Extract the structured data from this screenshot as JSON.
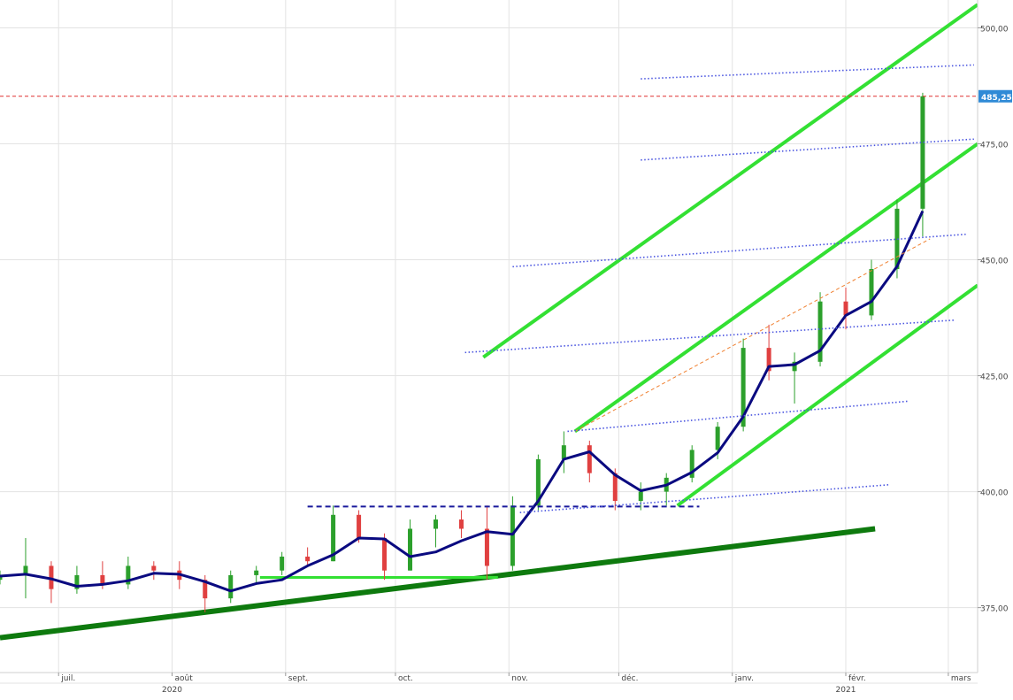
{
  "chart_data": {
    "type": "candlestick",
    "title": "",
    "xlabel": "",
    "ylabel": "",
    "ylim": [
      361,
      506
    ],
    "grid": true,
    "x_range": [
      "2020-06-15",
      "2021-03-09"
    ],
    "y_ticks": [
      "500,00",
      "475,00",
      "450,00",
      "425,00",
      "400,00",
      "375,00"
    ],
    "y_tick_values": [
      500,
      475,
      450,
      425,
      400,
      375
    ],
    "months": [
      {
        "date": "2020-07-01",
        "label": "juil."
      },
      {
        "date": "2020-08-01",
        "label": "août"
      },
      {
        "date": "2020-09-01",
        "label": "sept."
      },
      {
        "date": "2020-10-01",
        "label": "oct."
      },
      {
        "date": "2020-11-01",
        "label": "nov."
      },
      {
        "date": "2020-12-01",
        "label": "déc."
      },
      {
        "date": "2021-01-01",
        "label": "janv."
      },
      {
        "date": "2021-02-01",
        "label": "févr."
      },
      {
        "date": "2021-03-01",
        "label": "mars"
      }
    ],
    "years": [
      {
        "date": "2020-08-01",
        "label": "2020"
      },
      {
        "date": "2021-02-01",
        "label": "2021"
      }
    ],
    "last_price": {
      "value": 485.25,
      "label": "485,25"
    },
    "moving_average_points": [
      [
        "2020-06-15",
        381.8
      ],
      [
        "2020-06-22",
        382.2
      ],
      [
        "2020-06-29",
        381.2
      ],
      [
        "2020-07-06",
        379.6
      ],
      [
        "2020-07-13",
        380.0
      ],
      [
        "2020-07-20",
        380.8
      ],
      [
        "2020-07-27",
        382.4
      ],
      [
        "2020-08-03",
        382.2
      ],
      [
        "2020-08-10",
        380.6
      ],
      [
        "2020-08-17",
        378.6
      ],
      [
        "2020-08-24",
        380.2
      ],
      [
        "2020-08-31",
        381.0
      ],
      [
        "2020-09-07",
        384.0
      ],
      [
        "2020-09-14",
        386.4
      ],
      [
        "2020-09-21",
        390.0
      ],
      [
        "2020-09-28",
        389.8
      ],
      [
        "2020-10-05",
        386.0
      ],
      [
        "2020-10-12",
        387.0
      ],
      [
        "2020-10-19",
        389.4
      ],
      [
        "2020-10-26",
        391.4
      ],
      [
        "2020-11-02",
        390.8
      ],
      [
        "2020-11-09",
        398.0
      ],
      [
        "2020-11-16",
        407.0
      ],
      [
        "2020-11-23",
        408.6
      ],
      [
        "2020-11-30",
        403.6
      ],
      [
        "2020-12-07",
        400.2
      ],
      [
        "2020-12-14",
        401.4
      ],
      [
        "2020-12-21",
        404.2
      ],
      [
        "2020-12-28",
        408.4
      ],
      [
        "2021-01-04",
        416.2
      ],
      [
        "2021-01-11",
        427.0
      ],
      [
        "2021-01-18",
        427.4
      ],
      [
        "2021-01-25",
        430.4
      ],
      [
        "2021-02-01",
        438.0
      ],
      [
        "2021-02-08",
        441.0
      ],
      [
        "2021-02-15",
        448.6
      ],
      [
        "2021-02-22",
        460.5
      ]
    ],
    "candles_weekly_approx": [
      {
        "date": "2020-06-15",
        "open": 381.0,
        "high": 383.0,
        "low": 380.0,
        "close": 382.0
      },
      {
        "date": "2020-06-22",
        "open": 382.0,
        "high": 390.0,
        "low": 377.0,
        "close": 384.0
      },
      {
        "date": "2020-06-29",
        "open": 384.0,
        "high": 385.0,
        "low": 376.0,
        "close": 379.0
      },
      {
        "date": "2020-07-06",
        "open": 379.0,
        "high": 384.0,
        "low": 378.0,
        "close": 382.0
      },
      {
        "date": "2020-07-13",
        "open": 382.0,
        "high": 385.0,
        "low": 379.0,
        "close": 380.0
      },
      {
        "date": "2020-07-20",
        "open": 380.0,
        "high": 386.0,
        "low": 379.0,
        "close": 384.0
      },
      {
        "date": "2020-07-27",
        "open": 384.0,
        "high": 385.0,
        "low": 381.0,
        "close": 383.0
      },
      {
        "date": "2020-08-03",
        "open": 383.0,
        "high": 385.0,
        "low": 379.0,
        "close": 381.0
      },
      {
        "date": "2020-08-10",
        "open": 381.0,
        "high": 382.0,
        "low": 374.0,
        "close": 377.0
      },
      {
        "date": "2020-08-17",
        "open": 377.0,
        "high": 383.0,
        "low": 376.0,
        "close": 382.0
      },
      {
        "date": "2020-08-24",
        "open": 382.0,
        "high": 384.0,
        "low": 380.0,
        "close": 383.0
      },
      {
        "date": "2020-08-31",
        "open": 383.0,
        "high": 387.0,
        "low": 382.0,
        "close": 386.0
      },
      {
        "date": "2020-09-07",
        "open": 386.0,
        "high": 388.0,
        "low": 384.0,
        "close": 385.0
      },
      {
        "date": "2020-09-14",
        "open": 385.0,
        "high": 397.0,
        "low": 385.0,
        "close": 395.0
      },
      {
        "date": "2020-09-21",
        "open": 395.0,
        "high": 396.0,
        "low": 389.0,
        "close": 390.0
      },
      {
        "date": "2020-09-28",
        "open": 390.0,
        "high": 391.0,
        "low": 381.0,
        "close": 383.0
      },
      {
        "date": "2020-10-05",
        "open": 383.0,
        "high": 394.0,
        "low": 383.0,
        "close": 392.0
      },
      {
        "date": "2020-10-12",
        "open": 392.0,
        "high": 395.0,
        "low": 388.0,
        "close": 394.0
      },
      {
        "date": "2020-10-19",
        "open": 394.0,
        "high": 396.0,
        "low": 390.0,
        "close": 392.0
      },
      {
        "date": "2020-10-26",
        "open": 392.0,
        "high": 397.0,
        "low": 381.0,
        "close": 384.0
      },
      {
        "date": "2020-11-02",
        "open": 384.0,
        "high": 399.0,
        "low": 383.0,
        "close": 397.0
      },
      {
        "date": "2020-11-09",
        "open": 397.0,
        "high": 408.0,
        "low": 396.0,
        "close": 407.0
      },
      {
        "date": "2020-11-16",
        "open": 407.0,
        "high": 413.0,
        "low": 404.0,
        "close": 410.0
      },
      {
        "date": "2020-11-23",
        "open": 410.0,
        "high": 411.0,
        "low": 402.0,
        "close": 404.0
      },
      {
        "date": "2020-11-30",
        "open": 404.0,
        "high": 405.0,
        "low": 396.0,
        "close": 398.0
      },
      {
        "date": "2020-12-07",
        "open": 398.0,
        "high": 402.0,
        "low": 396.0,
        "close": 400.0
      },
      {
        "date": "2020-12-14",
        "open": 400.0,
        "high": 404.0,
        "low": 397.0,
        "close": 403.0
      },
      {
        "date": "2020-12-21",
        "open": 403.0,
        "high": 410.0,
        "low": 402.0,
        "close": 409.0
      },
      {
        "date": "2020-12-28",
        "open": 409.0,
        "high": 415.0,
        "low": 407.0,
        "close": 414.0
      },
      {
        "date": "2021-01-04",
        "open": 414.0,
        "high": 433.0,
        "low": 413.0,
        "close": 431.0
      },
      {
        "date": "2021-01-11",
        "open": 431.0,
        "high": 436.0,
        "low": 424.0,
        "close": 426.0
      },
      {
        "date": "2021-01-18",
        "open": 426.0,
        "high": 430.0,
        "low": 419.0,
        "close": 428.0
      },
      {
        "date": "2021-01-25",
        "open": 428.0,
        "high": 443.0,
        "low": 427.0,
        "close": 441.0
      },
      {
        "date": "2021-02-01",
        "open": 441.0,
        "high": 444.0,
        "low": 435.0,
        "close": 438.0
      },
      {
        "date": "2021-02-08",
        "open": 438.0,
        "high": 450.0,
        "low": 437.0,
        "close": 448.0
      },
      {
        "date": "2021-02-15",
        "open": 448.0,
        "high": 463.0,
        "low": 446.0,
        "close": 461.0
      },
      {
        "date": "2021-02-22",
        "open": 461.0,
        "high": 486.0,
        "low": 455.0,
        "close": 485.25
      }
    ],
    "overlays": [
      {
        "kind": "long-term-support",
        "color": "#0e7a0e",
        "points": [
          [
            "2020-06-15",
            368.5
          ],
          [
            "2021-02-09",
            392.0
          ]
        ]
      },
      {
        "kind": "channel-top",
        "color": "#33e033",
        "points": [
          [
            "2020-10-25",
            429.0
          ],
          [
            "2021-03-09",
            505.0
          ]
        ]
      },
      {
        "kind": "channel-middle",
        "color": "#33e033",
        "points": [
          [
            "2020-11-19",
            413.0
          ],
          [
            "2021-03-09",
            475.0
          ]
        ]
      },
      {
        "kind": "channel-bottom",
        "color": "#33e033",
        "points": [
          [
            "2020-12-17",
            397.0
          ],
          [
            "2021-03-09",
            444.5
          ]
        ]
      },
      {
        "kind": "support-horizontal",
        "color": "#33e033",
        "points": [
          [
            "2020-08-25",
            381.5
          ],
          [
            "2020-10-29",
            381.5
          ]
        ]
      },
      {
        "kind": "resistance-dashed",
        "color": "#1a1a9c",
        "points": [
          [
            "2020-09-07",
            396.8
          ],
          [
            "2020-12-23",
            396.8
          ]
        ]
      },
      {
        "kind": "last-price-line",
        "color": "#e03030",
        "points": [
          [
            "2020-06-15",
            485.25
          ],
          [
            "2021-03-09",
            485.25
          ]
        ]
      },
      {
        "kind": "trend-dashed",
        "color": "#f08030",
        "points": [
          [
            "2020-11-19",
            413.0
          ],
          [
            "2021-02-24",
            454.5
          ]
        ]
      },
      {
        "kind": "fan-line",
        "color": "#4a55e0",
        "points": [
          [
            "2020-12-07",
            489.0
          ],
          [
            "2021-03-08",
            492.0
          ]
        ]
      },
      {
        "kind": "fan-line",
        "color": "#4a55e0",
        "points": [
          [
            "2020-12-07",
            471.5
          ],
          [
            "2021-03-08",
            476.0
          ]
        ]
      },
      {
        "kind": "fan-line",
        "color": "#4a55e0",
        "points": [
          [
            "2020-11-02",
            448.5
          ],
          [
            "2021-03-06",
            455.5
          ]
        ]
      },
      {
        "kind": "fan-line",
        "color": "#4a55e0",
        "points": [
          [
            "2020-10-20",
            430.0
          ],
          [
            "2021-03-03",
            437.0
          ]
        ]
      },
      {
        "kind": "fan-line",
        "color": "#4a55e0",
        "points": [
          [
            "2020-11-17",
            413.0
          ],
          [
            "2021-02-18",
            419.5
          ]
        ]
      },
      {
        "kind": "fan-line",
        "color": "#4a55e0",
        "points": [
          [
            "2020-11-04",
            395.5
          ],
          [
            "2021-02-13",
            401.5
          ]
        ]
      }
    ],
    "colors": {
      "up": "#2ca02c",
      "down": "#e04040",
      "moving_average": "#0a0a80",
      "grid": "#e3e3e3",
      "price_tag": "#2f8ad6"
    }
  }
}
